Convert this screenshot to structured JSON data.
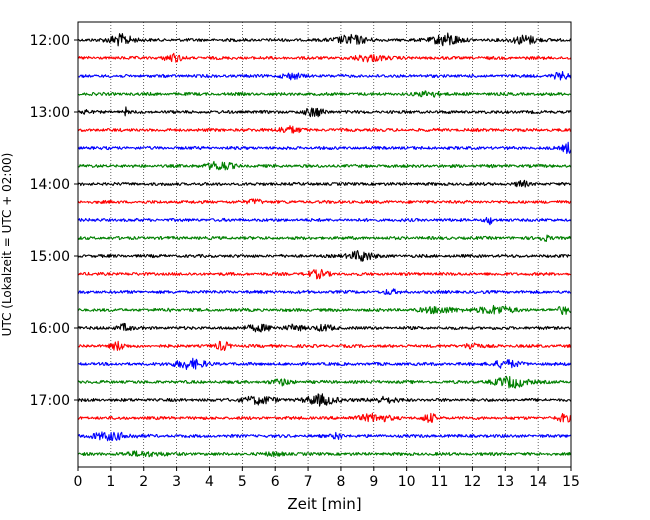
{
  "chart_data": {
    "type": "line",
    "title": "",
    "xlabel": "Zeit  [min]",
    "ylabel": "UTC (Lokalzeit = UTC + 02:00)",
    "xlim": [
      0,
      15
    ],
    "x_ticks": [
      "0",
      "1",
      "2",
      "3",
      "4",
      "5",
      "6",
      "7",
      "8",
      "9",
      "10",
      "11",
      "12",
      "13",
      "14",
      "15"
    ],
    "y_ticks": [
      "12:00",
      "13:00",
      "14:00",
      "15:00",
      "16:00",
      "17:00"
    ],
    "grid": "vertical dotted",
    "trace_interval_min": 15,
    "start_time": "12:00",
    "colors": [
      "#000000",
      "#ff0000",
      "#0000ff",
      "#008000"
    ],
    "traces": [
      {
        "start": "12:00",
        "color": "#000000",
        "bursts": [
          [
            1.3,
            0.35,
            5.5
          ],
          [
            8.3,
            0.45,
            4.5
          ],
          [
            11.2,
            0.4,
            6.0
          ],
          [
            13.6,
            0.35,
            4.5
          ]
        ]
      },
      {
        "start": "12:15",
        "color": "#ff0000",
        "bursts": [
          [
            2.9,
            0.25,
            3.5
          ],
          [
            8.9,
            0.45,
            3.0
          ]
        ]
      },
      {
        "start": "12:30",
        "color": "#0000ff",
        "bursts": [
          [
            6.5,
            0.3,
            2.5
          ],
          [
            14.7,
            0.25,
            3.0
          ]
        ]
      },
      {
        "start": "12:45",
        "color": "#008000",
        "bursts": [
          [
            10.7,
            0.35,
            2.5
          ]
        ]
      },
      {
        "start": "13:00",
        "color": "#000000",
        "bursts": [
          [
            0.2,
            0.05,
            9.0
          ],
          [
            1.45,
            0.05,
            4.0
          ],
          [
            7.2,
            0.3,
            4.0
          ]
        ]
      },
      {
        "start": "13:15",
        "color": "#ff0000",
        "bursts": [
          [
            6.4,
            0.35,
            3.0
          ]
        ]
      },
      {
        "start": "13:30",
        "color": "#0000ff",
        "bursts": [
          [
            14.9,
            0.15,
            5.0
          ]
        ]
      },
      {
        "start": "13:45",
        "color": "#008000",
        "bursts": [
          [
            4.3,
            0.4,
            4.0
          ]
        ]
      },
      {
        "start": "14:00",
        "color": "#000000",
        "bursts": [
          [
            13.5,
            0.15,
            3.5
          ]
        ]
      },
      {
        "start": "14:15",
        "color": "#ff0000",
        "bursts": [
          [
            5.4,
            0.2,
            2.5
          ]
        ]
      },
      {
        "start": "14:30",
        "color": "#0000ff",
        "bursts": [
          [
            12.5,
            0.1,
            4.0
          ]
        ]
      },
      {
        "start": "14:45",
        "color": "#008000",
        "bursts": [
          [
            14.2,
            0.2,
            2.5
          ]
        ]
      },
      {
        "start": "15:00",
        "color": "#000000",
        "bursts": [
          [
            8.6,
            0.35,
            5.0
          ]
        ]
      },
      {
        "start": "15:15",
        "color": "#ff0000",
        "bursts": [
          [
            7.3,
            0.3,
            3.5
          ]
        ]
      },
      {
        "start": "15:30",
        "color": "#0000ff",
        "bursts": [
          [
            9.5,
            0.2,
            2.0
          ]
        ]
      },
      {
        "start": "15:45",
        "color": "#008000",
        "bursts": [
          [
            2.8,
            0.05,
            4.0
          ],
          [
            11.0,
            0.5,
            3.0
          ],
          [
            12.7,
            0.5,
            4.0
          ],
          [
            14.8,
            0.2,
            3.5
          ]
        ]
      },
      {
        "start": "16:00",
        "color": "#000000",
        "bursts": [
          [
            1.4,
            0.2,
            3.5
          ],
          [
            5.5,
            0.4,
            3.0
          ],
          [
            6.6,
            0.25,
            3.0
          ],
          [
            7.5,
            0.3,
            2.5
          ]
        ]
      },
      {
        "start": "16:15",
        "color": "#ff0000",
        "bursts": [
          [
            1.2,
            0.2,
            4.0
          ],
          [
            4.4,
            0.2,
            4.0
          ],
          [
            12.0,
            0.2,
            3.5
          ]
        ]
      },
      {
        "start": "16:30",
        "color": "#0000ff",
        "bursts": [
          [
            3.4,
            0.45,
            4.5
          ],
          [
            13.0,
            0.4,
            3.5
          ]
        ]
      },
      {
        "start": "16:45",
        "color": "#008000",
        "bursts": [
          [
            6.2,
            0.3,
            2.5
          ],
          [
            13.2,
            0.5,
            5.0
          ]
        ]
      },
      {
        "start": "17:00",
        "color": "#000000",
        "bursts": [
          [
            5.5,
            0.5,
            3.5
          ],
          [
            7.4,
            0.45,
            5.0
          ],
          [
            9.3,
            0.4,
            2.5
          ]
        ]
      },
      {
        "start": "17:15",
        "color": "#ff0000",
        "bursts": [
          [
            9.0,
            0.5,
            3.5
          ],
          [
            10.7,
            0.2,
            4.0
          ],
          [
            14.8,
            0.2,
            3.5
          ]
        ]
      },
      {
        "start": "17:30",
        "color": "#0000ff",
        "bursts": [
          [
            1.0,
            0.6,
            3.5
          ],
          [
            7.9,
            0.15,
            3.0
          ]
        ]
      },
      {
        "start": "17:45",
        "color": "#008000",
        "bursts": [
          [
            2.0,
            0.6,
            2.0
          ],
          [
            6.0,
            0.3,
            1.5
          ]
        ]
      }
    ]
  }
}
